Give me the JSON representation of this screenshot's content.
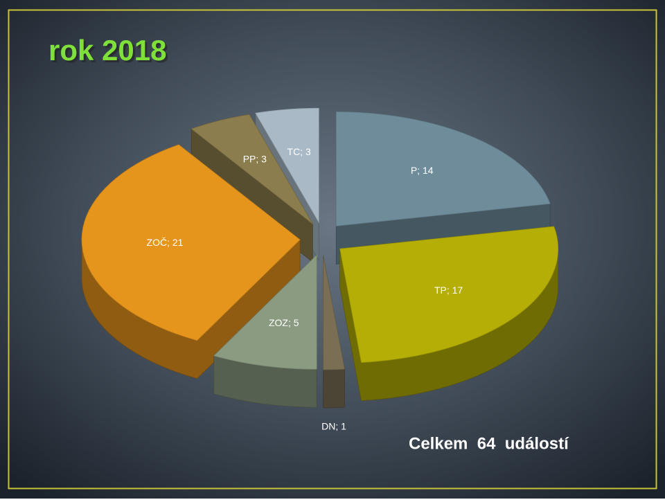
{
  "chart_data": {
    "type": "pie3d",
    "title": "rok 2018",
    "values": [
      14,
      17,
      1,
      5,
      21,
      3,
      3
    ],
    "value_labels": [
      "P; 14",
      "TP; 17",
      "DN; 1",
      "ZOZ; 5",
      "ZOČ; 21",
      "PP; 3",
      "TC; 3"
    ],
    "colors": [
      "#6f8c9b",
      "#b5ae06",
      "#7a6f55",
      "#8b9b82",
      "#e6951c",
      "#8c7d4e",
      "#a9bac6"
    ],
    "annotation": "Celkem  64  událostí"
  }
}
